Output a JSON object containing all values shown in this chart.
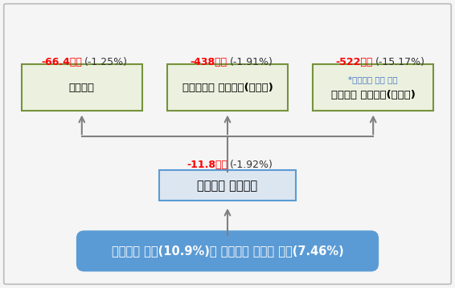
{
  "top_box": {
    "text": "최저임금 인상(10.9%)과 신용카드 수수료 인하(7.46%)",
    "bg_color": "#5b9bd5",
    "text_color": "#ffffff",
    "font_size": 10.5
  },
  "middle_box": {
    "text": "신용카드 이용금액",
    "sub_text_red": "-11.8조원",
    "sub_text_black": "(-1.92%)",
    "bg_color": "#dce6f1",
    "border_color": "#5b9bd5",
    "text_color": "#000000",
    "font_size": 10.5
  },
  "bottom_boxes": [
    {
      "label": "총매출액",
      "sub_label": "",
      "sub_label_color": "",
      "value_red": "-66.4조원",
      "value_black": "(-1.25%)",
      "bg_color": "#ebf1de",
      "border_color": "#76923c",
      "font_size": 9.5
    },
    {
      "label": "비단순노무 노동수요(일자리)",
      "sub_label": "",
      "sub_label_color": "",
      "value_red": "-438천명",
      "value_black": "(-1.91%)",
      "bg_color": "#ebf1de",
      "border_color": "#76923c",
      "font_size": 9.5
    },
    {
      "label": "단순노무 노동수요(일자리)",
      "sub_label": "*최저임금 적용 대상",
      "sub_label_color": "#4472c4",
      "value_red": "-522천명",
      "value_black": "(-15.17%)",
      "bg_color": "#ebf1de",
      "border_color": "#76923c",
      "font_size": 9.5
    }
  ],
  "bg_color": "#f5f5f5",
  "border_color": "#bbbbbb",
  "arrow_color": "#808080"
}
